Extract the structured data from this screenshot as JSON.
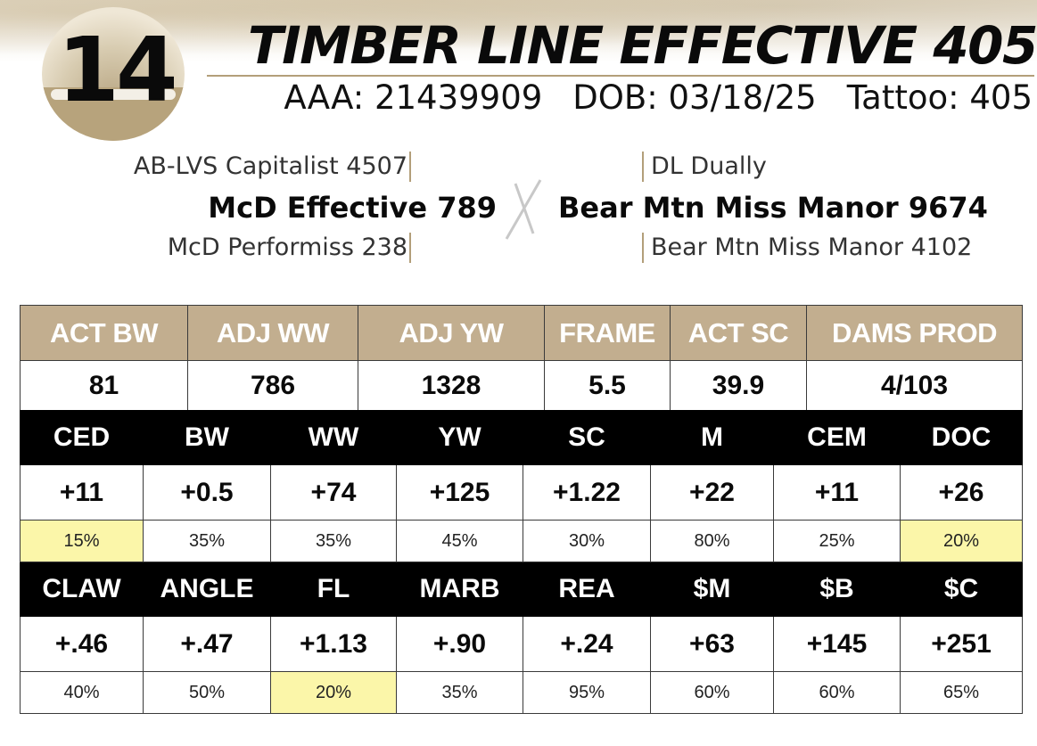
{
  "lot": {
    "number": "14"
  },
  "animal": {
    "name": "TIMBER LINE EFFECTIVE 405",
    "registration": "AAA: 21439909",
    "dob": "DOB: 03/18/25",
    "tattoo": "Tattoo: 405"
  },
  "pedigree": {
    "sire_sire": "AB-LVS Capitalist 4507",
    "sire": "McD Effective 789",
    "sire_dam": "McD Performiss 238",
    "dam_sire": "DL Dually",
    "dam": "Bear Mtn Miss Manor 9674",
    "dam_dam": "Bear Mtn Miss Manor 4102"
  },
  "performance": {
    "headers": [
      "ACT BW",
      "ADJ WW",
      "ADJ YW",
      "FRAME",
      "ACT SC",
      "DAMS PROD"
    ],
    "values": [
      "81",
      "786",
      "1328",
      "5.5",
      "39.9",
      "4/103"
    ]
  },
  "epd_row1": {
    "headers": [
      "CED",
      "BW",
      "WW",
      "YW",
      "SC",
      "M",
      "CEM",
      "DOC"
    ],
    "values": [
      "+11",
      "+0.5",
      "+74",
      "+125",
      "+1.22",
      "+22",
      "+11",
      "+26"
    ],
    "percentiles": [
      "15%",
      "35%",
      "35%",
      "45%",
      "30%",
      "80%",
      "25%",
      "20%"
    ],
    "highlighted": [
      true,
      false,
      false,
      false,
      false,
      false,
      false,
      true
    ]
  },
  "epd_row2": {
    "headers": [
      "CLAW",
      "ANGLE",
      "FL",
      "MARB",
      "REA",
      "$M",
      "$B",
      "$C"
    ],
    "values": [
      "+.46",
      "+.47",
      "+1.13",
      "+.90",
      "+.24",
      "+63",
      "+145",
      "+251"
    ],
    "percentiles": [
      "40%",
      "50%",
      "20%",
      "35%",
      "95%",
      "60%",
      "60%",
      "65%"
    ],
    "highlighted": [
      false,
      false,
      true,
      false,
      false,
      false,
      false,
      false
    ]
  },
  "colors": {
    "tan_header": "#c2ae8f",
    "black_header": "#000000",
    "highlight": "#fbf6a9"
  }
}
